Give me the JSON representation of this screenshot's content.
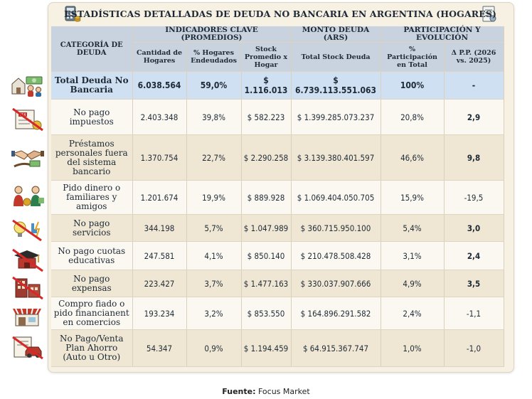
{
  "title": "ESTADÍSTICAS DETALLADAS DE DEUDA NO BANCARIA EN ARGENTINA (HOGARES)",
  "header": {
    "category": "CATEGORÍA DE DEUDA",
    "group_indicators": "INDICADORES CLAVE (PROMEDIOS)",
    "group_amount": "MONTO DEUDA (ARS)",
    "group_share": "PARTICIPACIÓN Y EVOLUCIÓN",
    "col_households": "Cantidad de Hogares",
    "col_pct_households": "% Hogares Endeudados",
    "col_avg_stock": "Stock Promedio x Hogar",
    "col_total_stock": "Total Stock Deuda",
    "col_share": "% Participación en Total",
    "col_delta": "Δ P.P. (2026 vs. 2025)"
  },
  "rows": [
    {
      "category": "Total Deuda No Bancaria",
      "households": "6.038.564",
      "pct_households": "59,0%",
      "avg_stock": "$ 1.116.013",
      "total_stock": "$ 6.739.113.551.063",
      "share": "100%",
      "delta": "-",
      "icon": "money-house-family-icon"
    },
    {
      "category": "No pago impuestos",
      "households": "2.403.348",
      "pct_households": "39,8%",
      "avg_stock": "$ 582.223",
      "total_stock": "$ 1.399.285.073.237",
      "share": "20,8%",
      "delta": "2,9",
      "icon": "no-tax-icon"
    },
    {
      "category": "Préstamos personales fuera del sistema bancario",
      "households": "1.370.754",
      "pct_households": "22,7%",
      "avg_stock": "$ 2.290.258",
      "total_stock": "$ 3.139.380.401.597",
      "share": "46,6%",
      "delta": "9,8",
      "icon": "handshake-loan-icon"
    },
    {
      "category": "Pido dinero o familiares y amigos",
      "households": "1.201.674",
      "pct_households": "19,9%",
      "avg_stock": "$ 889.928",
      "total_stock": "$ 1.069.404.050.705",
      "share": "15,9%",
      "delta": "-19,5",
      "icon": "family-money-icon"
    },
    {
      "category": "No pago servicios",
      "households": "344.198",
      "pct_households": "5,7%",
      "avg_stock": "$ 1.047.989",
      "total_stock": "$ 360.715.950.100",
      "share": "5,4%",
      "delta": "3,0",
      "icon": "no-utilities-icon"
    },
    {
      "category": "No pago cuotas educativas",
      "households": "247.581",
      "pct_households": "4,1%",
      "avg_stock": "$ 850.140",
      "total_stock": "$ 210.478.508.428",
      "share": "3,1%",
      "delta": "2,4",
      "icon": "no-education-icon"
    },
    {
      "category": "No pago expensas",
      "households": "223.427",
      "pct_households": "3,7%",
      "avg_stock": "$ 1.477.163",
      "total_stock": "$ 330.037.907.666",
      "share": "4,9%",
      "delta": "3,5",
      "icon": "no-building-fees-icon"
    },
    {
      "category": "Compro fiado o pido financianent en comercios",
      "households": "193.234",
      "pct_households": "3,2%",
      "avg_stock": "$ 853.550",
      "total_stock": "$ 164.896.291.582",
      "share": "2,4%",
      "delta": "-1,1",
      "icon": "store-credit-icon"
    },
    {
      "category": "No Pago/Venta Plan Ahorro (Auto u Otro)",
      "households": "54.347",
      "pct_households": "0,9%",
      "avg_stock": "$ 1.194.459",
      "total_stock": "$ 64.915.367.747",
      "share": "1,0%",
      "delta": "-1,0",
      "icon": "no-car-plan-icon"
    }
  ],
  "footer": {
    "label": "Fuente:",
    "source": "Focus Market"
  },
  "colors": {
    "header_bg": "#c9d3e0",
    "total_row_bg": "#cfe0f2",
    "panel_bg": "#f7f1e3",
    "prohibit_red": "#d62828"
  }
}
